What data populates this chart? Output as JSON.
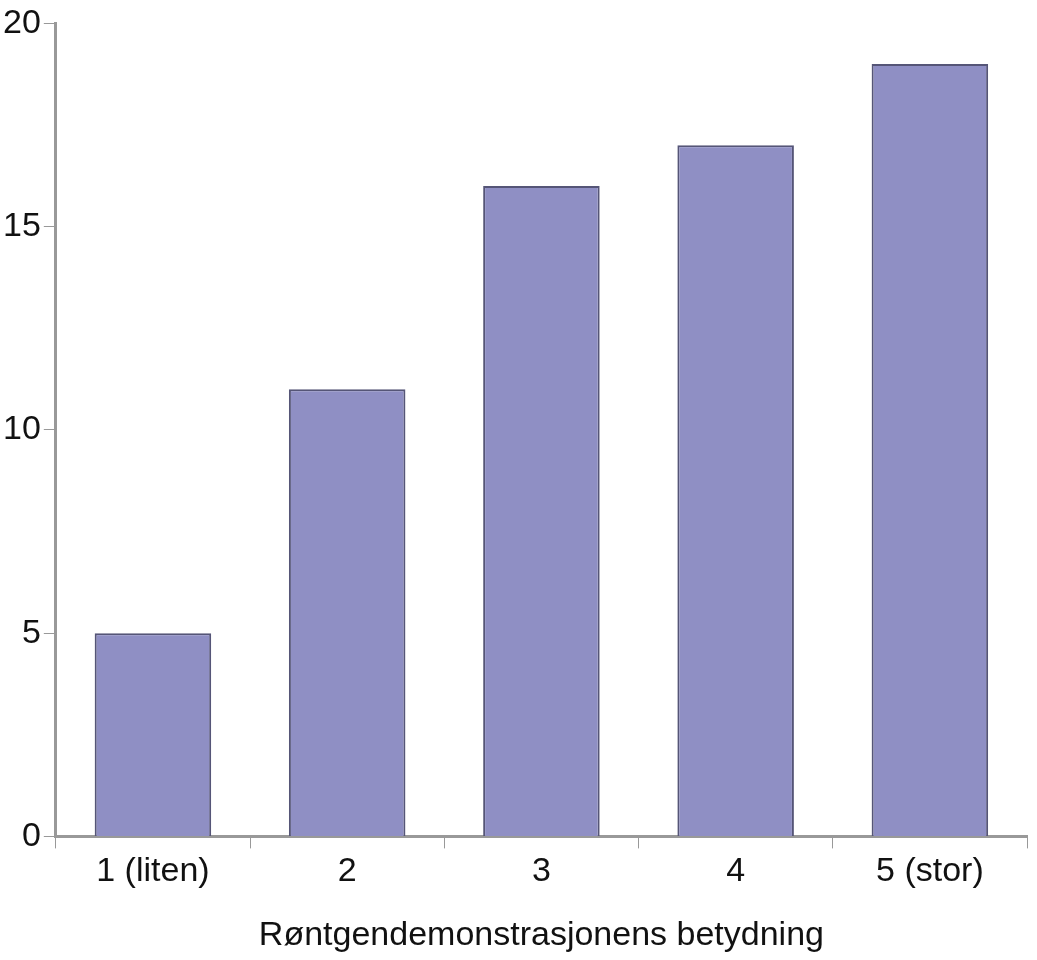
{
  "chart_data": {
    "type": "bar",
    "xlabel": "Røntgendemonstrasjonens betydning",
    "categories": [
      "1 (liten)",
      "2",
      "3",
      "4",
      "5 (stor)"
    ],
    "values": [
      5,
      11,
      16,
      17,
      19
    ],
    "color": "#8f8fc4",
    "ylim": [
      0,
      20
    ],
    "yticks": [
      0,
      5,
      10,
      15,
      20
    ],
    "grid": false,
    "legend": false
  }
}
